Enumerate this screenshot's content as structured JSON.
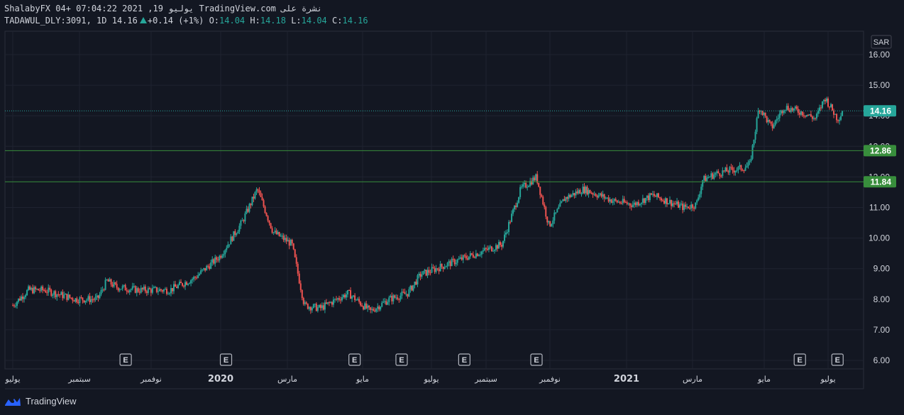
{
  "header": {
    "line1": "ShalabyFX 04+ 07:04:22 2021 ,19 يوليو TradingView.com نشرة على",
    "symbol": "TADAWUL_DLY:3091, 1D",
    "last": "14.16",
    "change": "+0.14 (+1%)",
    "o_label": "O:",
    "o_value": "14.04",
    "h_label": "H:",
    "h_value": "14.18",
    "l_label": "L:",
    "l_value": "14.04",
    "c_label": "C:",
    "c_value": "14.16"
  },
  "footer": {
    "brand": "TradingView"
  },
  "chart_data": {
    "type": "candlestick",
    "currency": "SAR",
    "ylim": [
      5.7,
      16.3
    ],
    "y_ticks": [
      "6.00",
      "7.00",
      "8.00",
      "9.00",
      "10.00",
      "11.00",
      "12.00",
      "13.00",
      "14.00",
      "15.00",
      "16.00"
    ],
    "x_ticks": [
      "يوليو",
      "سبتمبر",
      "نوفمبر",
      "2020",
      "مارس",
      "مايو",
      "يوليو",
      "سبتمبر",
      "نوفمبر",
      "2021",
      "مارس",
      "مايو",
      "يوليو"
    ],
    "horizontal_lines": [
      {
        "value": 12.86,
        "label": "12.86",
        "style": "solid",
        "color": "#388e3c"
      },
      {
        "value": 11.84,
        "label": "11.84",
        "style": "solid",
        "color": "#388e3c"
      },
      {
        "value": 14.16,
        "label": "14.16",
        "style": "dotted",
        "color": "#26a69a"
      }
    ],
    "earnings_marker_label": "E",
    "earnings_month_index": [
      3.6,
      6.8,
      10.9,
      12.4,
      14.4,
      16.7,
      25.1,
      26.3
    ],
    "price_path": [
      [
        0,
        7.8
      ],
      [
        0.5,
        8.3
      ],
      [
        1,
        8.3
      ],
      [
        2,
        8.0
      ],
      [
        2.7,
        8.0
      ],
      [
        3.0,
        8.6
      ],
      [
        3.3,
        8.4
      ],
      [
        4.0,
        8.3
      ],
      [
        5.0,
        8.3
      ],
      [
        5.8,
        8.7
      ],
      [
        6.6,
        9.4
      ],
      [
        7.3,
        10.5
      ],
      [
        7.8,
        11.6
      ],
      [
        8.3,
        10.2
      ],
      [
        8.9,
        9.8
      ],
      [
        9.3,
        7.8
      ],
      [
        9.8,
        7.7
      ],
      [
        10.7,
        8.2
      ],
      [
        11.4,
        7.6
      ],
      [
        12.0,
        8.0
      ],
      [
        12.6,
        8.2
      ],
      [
        13.0,
        8.8
      ],
      [
        14.0,
        9.2
      ],
      [
        14.8,
        9.5
      ],
      [
        15.6,
        9.8
      ],
      [
        16.2,
        11.6
      ],
      [
        16.7,
        12.0
      ],
      [
        17.1,
        10.4
      ],
      [
        17.6,
        11.3
      ],
      [
        18.2,
        11.6
      ],
      [
        19.2,
        11.2
      ],
      [
        19.8,
        11.1
      ],
      [
        20.4,
        11.4
      ],
      [
        21.4,
        11.0
      ],
      [
        21.8,
        11.1
      ],
      [
        22.0,
        11.9
      ],
      [
        22.4,
        12.1
      ],
      [
        22.8,
        12.2
      ],
      [
        23.3,
        12.3
      ],
      [
        23.5,
        12.4
      ],
      [
        23.8,
        14.3
      ],
      [
        24.2,
        13.6
      ],
      [
        24.6,
        14.3
      ],
      [
        25.2,
        14.1
      ],
      [
        25.6,
        13.9
      ],
      [
        25.9,
        14.6
      ],
      [
        26.3,
        13.9
      ],
      [
        26.5,
        14.16
      ]
    ]
  }
}
